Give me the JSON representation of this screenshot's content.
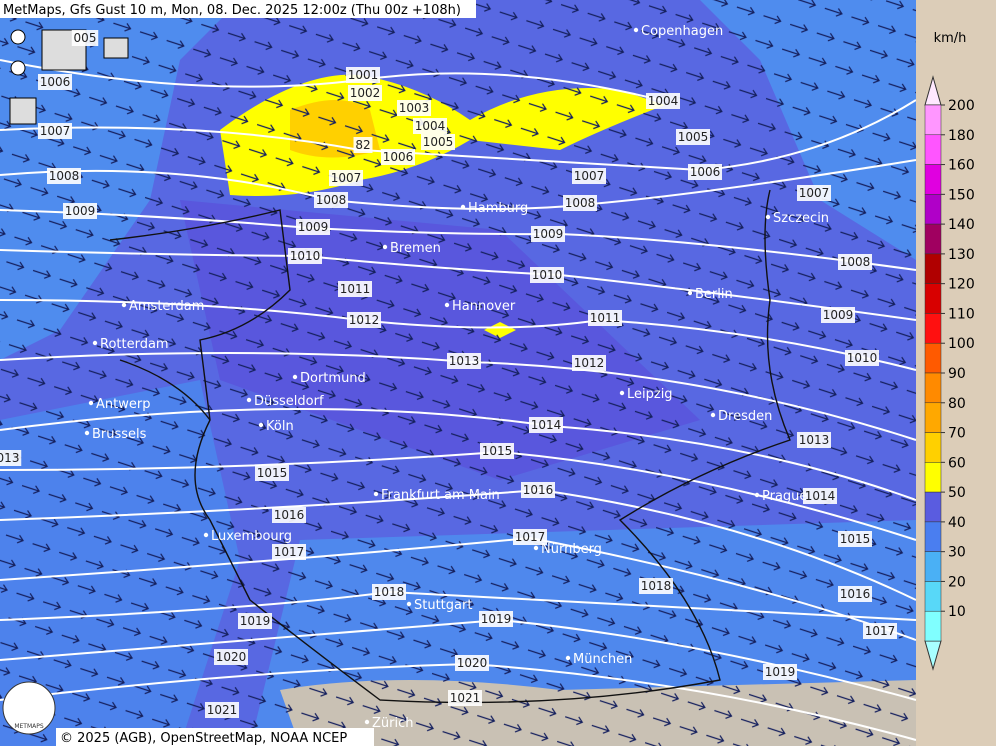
{
  "header": {
    "title": "MetMaps, Gfs Gust 10 m, Mon, 08. Dec. 2025 12:00z (Thu 00z +108h)"
  },
  "cities": [
    "Copenhagen",
    "Hamburg",
    "Bremen",
    "Szczecin",
    "Berlin",
    "Amsterdam",
    "Hannover",
    "Rotterdam",
    "Dortmund",
    "Leipzig",
    "Antwerp",
    "Düsseldorf",
    "Dresden",
    "Köln",
    "Brussels",
    "Frankfurt am Main",
    "Prague",
    "Luxembourg",
    "Nürnberg",
    "Stuttgart",
    "München",
    "Zürich"
  ],
  "isobar_labels": [
    "1001",
    "1002",
    "1003",
    "1004",
    "1005",
    "1006",
    "1007",
    "1008",
    "1009",
    "1010",
    "1011",
    "1012",
    "1013",
    "1014",
    "1015",
    "1016",
    "1017",
    "1018",
    "1019",
    "1020",
    "1021",
    "005",
    "1006",
    "1007",
    "1008",
    "1009",
    "1015",
    "1016",
    "1017",
    "1019",
    "1020",
    "1021",
    "013",
    "1004",
    "1005",
    "1006",
    "1007",
    "1008",
    "1009",
    "1010",
    "1011",
    "1012",
    "1007",
    "1008",
    "1009",
    "1010",
    "1013",
    "1014",
    "1015",
    "1016",
    "1017",
    "1018",
    "1019",
    "82"
  ],
  "legend": {
    "unit": "km/h",
    "ticks": [
      200,
      180,
      160,
      150,
      140,
      130,
      120,
      110,
      100,
      90,
      80,
      70,
      60,
      50,
      40,
      30,
      20,
      10
    ]
  },
  "logo": "METMAPS",
  "attribution": "© 2025 (AGB), OpenStreetMap, NOAA NCEP"
}
